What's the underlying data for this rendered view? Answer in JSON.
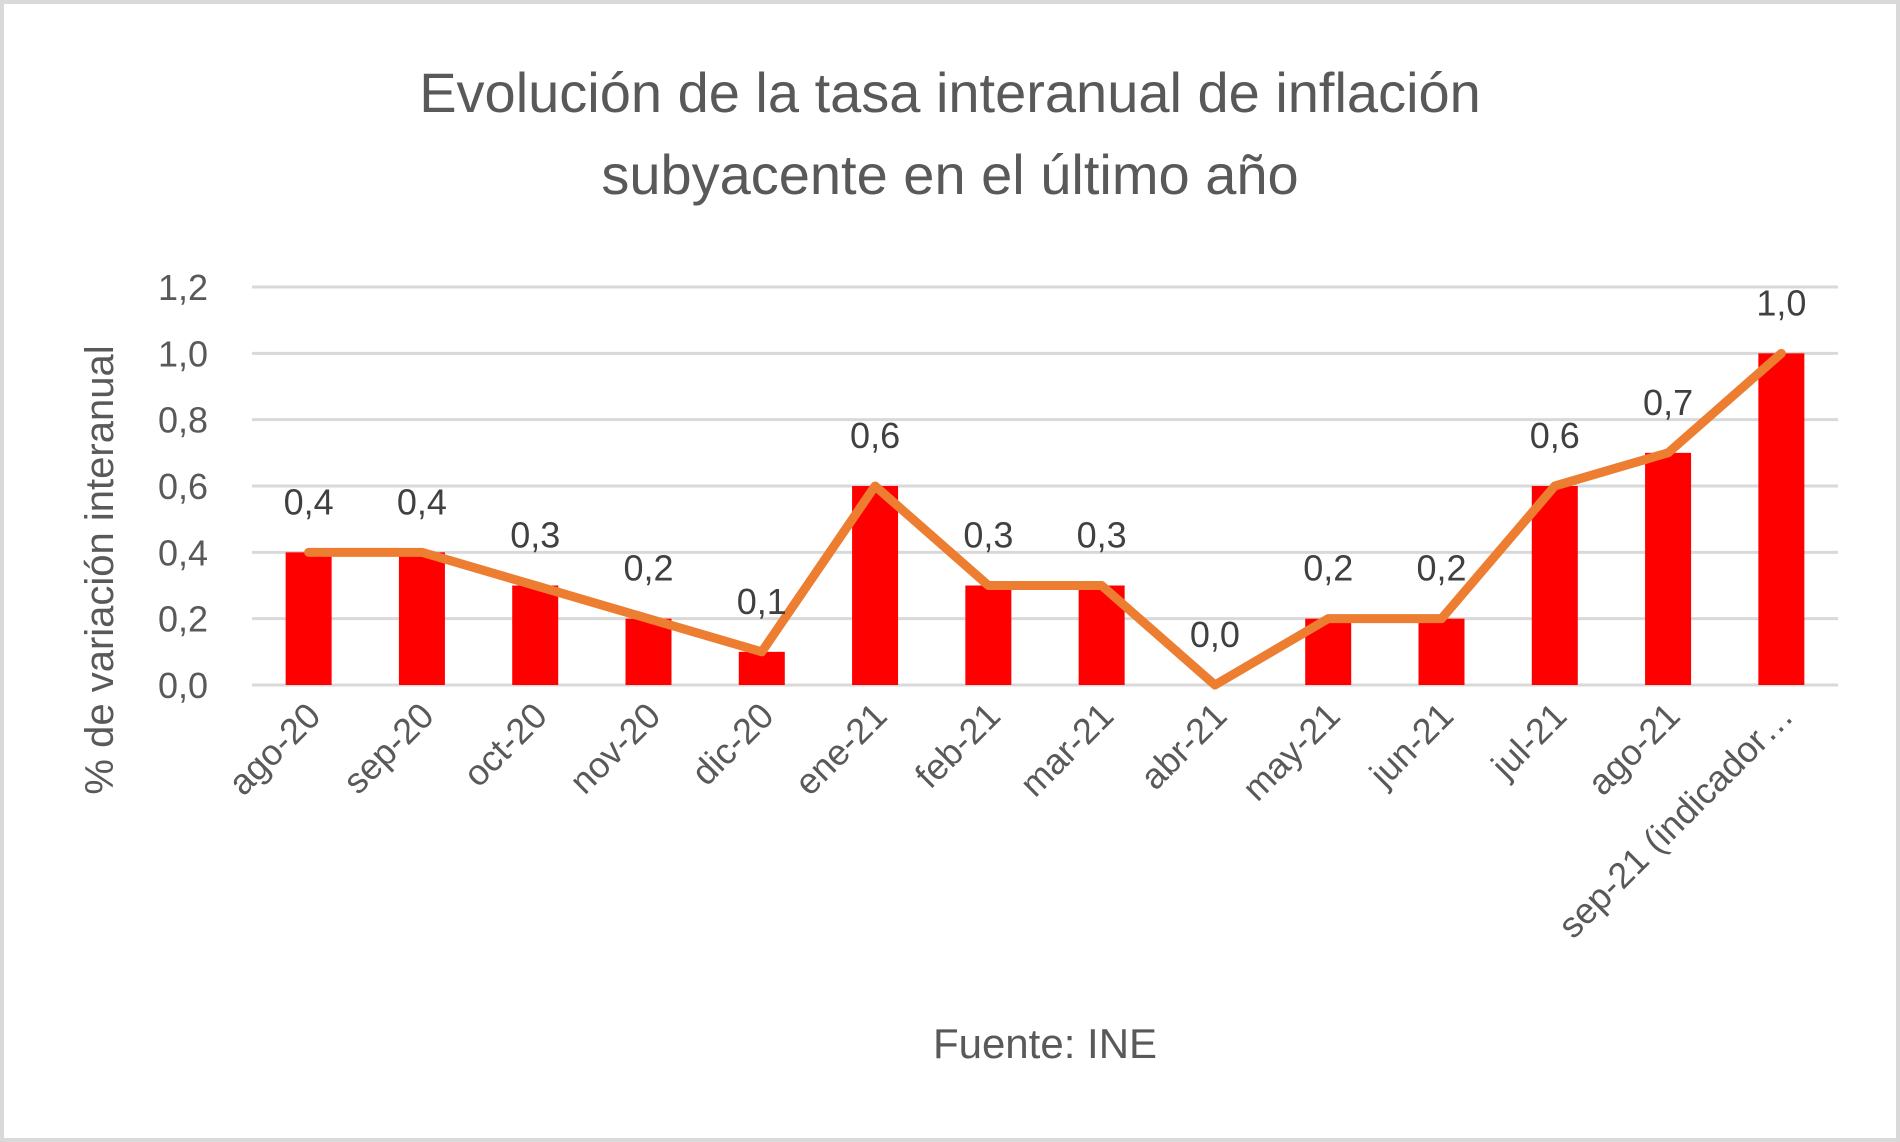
{
  "chart_data": {
    "type": "bar",
    "title_lines": [
      "Evolución de la tasa interanual de inflación",
      "subyacente en el último año"
    ],
    "categories": [
      "ago-20",
      "sep-20",
      "oct-20",
      "nov-20",
      "dic-20",
      "ene-21",
      "feb-21",
      "mar-21",
      "abr-21",
      "may-21",
      "jun-21",
      "jul-21",
      "ago-21",
      "sep-21 (indicador…"
    ],
    "values": [
      0.4,
      0.4,
      0.3,
      0.2,
      0.1,
      0.6,
      0.3,
      0.3,
      0.0,
      0.2,
      0.2,
      0.6,
      0.7,
      1.0
    ],
    "value_labels": [
      "0,4",
      "0,4",
      "0,3",
      "0,2",
      "0,1",
      "0,6",
      "0,3",
      "0,3",
      "0,0",
      "0,2",
      "0,2",
      "0,6",
      "0,7",
      "1,0"
    ],
    "series": [
      {
        "name": "bars",
        "kind": "bar",
        "color": "#ff0000"
      },
      {
        "name": "line",
        "kind": "line",
        "color": "#ed7d31"
      }
    ],
    "ylabel": "% de variación interanual",
    "ylim": [
      0,
      1.2
    ],
    "yticks": [
      0.0,
      0.2,
      0.4,
      0.6,
      0.8,
      1.0,
      1.2
    ],
    "ytick_labels": [
      "0,0",
      "0,2",
      "0,4",
      "0,6",
      "0,8",
      "1,0",
      "1,2"
    ],
    "grid": true,
    "gridColor": "#d9d9d9",
    "source": "Fuente: INE"
  }
}
